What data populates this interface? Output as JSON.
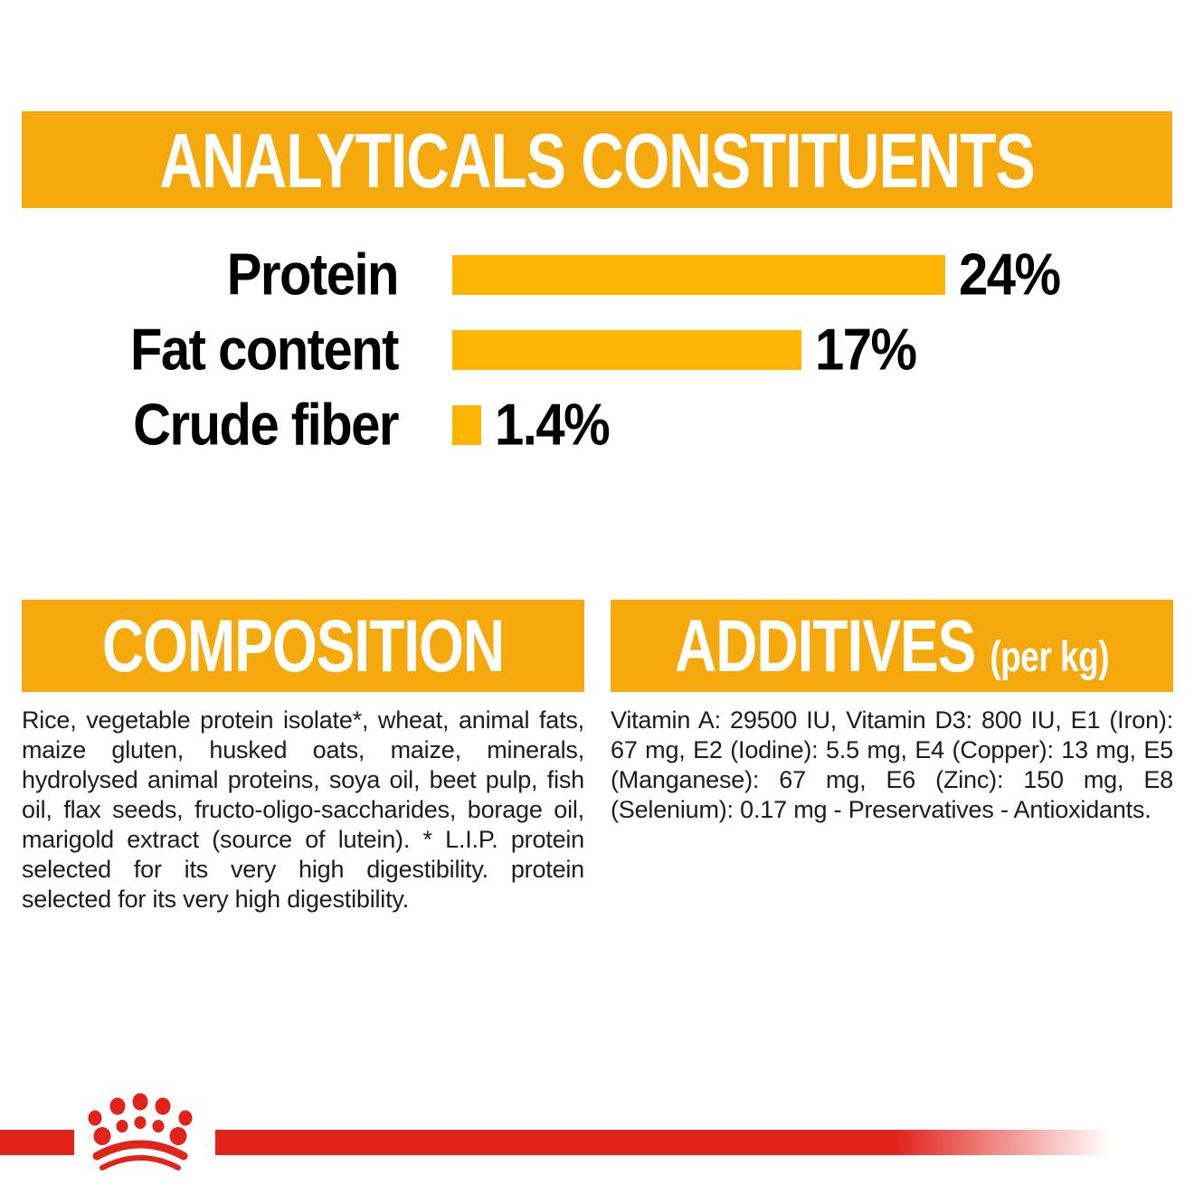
{
  "colors": {
    "banner_yellow": "#F6A90C",
    "bar_yellow": "#FFB503",
    "brand_red": "#E2231A",
    "text_color": "#1C1C1A",
    "heading_text": "#FFFFFF"
  },
  "analyticals": {
    "title": "ANALYTICALS CONSTITUENTS"
  },
  "chart_data": {
    "type": "bar",
    "orientation": "horizontal",
    "title": "ANALYTICALS CONSTITUENTS",
    "categories": [
      "Protein",
      "Fat content",
      "Crude fiber"
    ],
    "values": [
      24,
      17,
      1.4
    ],
    "unit": "%",
    "bar_color": "#FFB503",
    "value_labels": true,
    "xlabel": "",
    "ylabel": "",
    "rows": [
      {
        "label": "Protein",
        "value": 24,
        "display": "24%"
      },
      {
        "label": "Fat content",
        "value": 17,
        "display": "17%"
      },
      {
        "label": "Crude fiber",
        "value": 1.4,
        "display": "1.4%"
      }
    ]
  },
  "composition": {
    "heading": "COMPOSITION",
    "text": "Rice, vegetable protein isolate*, wheat, animal fats, maize gluten, husked oats, maize, minerals, hydrolysed animal proteins, soya oil, beet pulp, fish oil, flax seeds, fructo-oligo-saccharides, borage oil, marigold extract (source of lutein). * L.I.P. protein selected for its very high digestibility. protein selected for its very high digestibility."
  },
  "additives": {
    "heading": "ADDITIVES",
    "heading_suffix": "(per kg)",
    "text": "Vitamin A: 29500 IU, Vitamin D3: 800 IU, E1 (Iron): 67 mg, E2 (Iodine): 5.5 mg, E4 (Copper): 13 mg, E5 (Manganese): 67 mg, E6 (Zinc): 150 mg, E8 (Selenium): 0.17 mg - Preservatives - Antioxidants."
  },
  "footer": {
    "logo_icon": "royal-canin-crown-icon"
  }
}
